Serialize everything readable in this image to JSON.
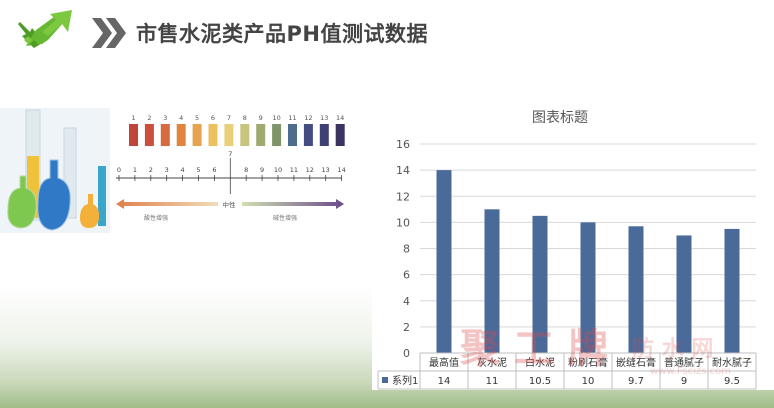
{
  "header": {
    "title": "市售水泥类产品PH值测试数据",
    "colors": {
      "arrow": "#5cae2a",
      "chevron": "#666666"
    }
  },
  "ph_scale": {
    "swatch_labels": [
      "1",
      "2",
      "3",
      "4",
      "5",
      "6",
      "7",
      "8",
      "9",
      "10",
      "11",
      "12",
      "13",
      "14"
    ],
    "swatch_colors": [
      "#c0443a",
      "#cc4e3c",
      "#d86a3f",
      "#e1843f",
      "#e7a34d",
      "#ecbf5f",
      "#e9cf79",
      "#c8c47d",
      "#9eaa6e",
      "#7f9468",
      "#4e6c8b",
      "#434d84",
      "#3e3f73",
      "#3a3461"
    ],
    "ruler_labels": [
      "0",
      "1",
      "2",
      "3",
      "4",
      "5",
      "6",
      "7",
      "8",
      "9",
      "10",
      "11",
      "12",
      "13",
      "14"
    ],
    "neutral_label": "中性",
    "acid_label": "酸性增强",
    "base_label": "碱性增强"
  },
  "chart_data": {
    "type": "bar",
    "title": "图表标题",
    "categories": [
      "最高值",
      "灰水泥",
      "白水泥",
      "粉刷石膏",
      "嵌缝石膏",
      "普通腻子",
      "耐水腻子"
    ],
    "series": [
      {
        "name": "系列1",
        "values": [
          14,
          11,
          10.5,
          10,
          9.7,
          9,
          9.5
        ],
        "value_labels": [
          "14",
          "11",
          "10.5",
          "10",
          "9.7",
          "9",
          "9.5"
        ]
      }
    ],
    "ylim": [
      0,
      16
    ],
    "yticks": [
      "0",
      "2",
      "4",
      "6",
      "8",
      "10",
      "12",
      "14",
      "16"
    ],
    "grid": true,
    "legend": "table-bottom",
    "colors": {
      "bar": "#4a6a9a"
    }
  }
}
